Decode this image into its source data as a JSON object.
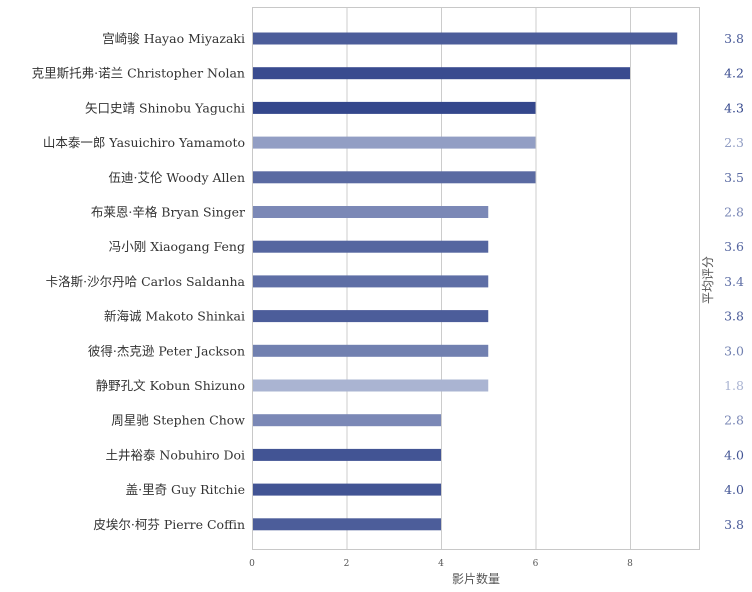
{
  "chart_data": {
    "type": "bar",
    "orientation": "horizontal",
    "title": "",
    "xlabel": "影片数量",
    "ylabel_right": "平均评分",
    "xlim": [
      0,
      9.5
    ],
    "xticks": [
      0,
      2,
      4,
      6,
      8
    ],
    "grid": true,
    "categories": [
      "宫崎骏 Hayao Miyazaki",
      "克里斯托弗·诺兰 Christopher Nolan",
      "矢口史靖 Shinobu Yaguchi",
      "山本泰一郎 Yasuichiro Yamamoto",
      "伍迪·艾伦 Woody Allen",
      "布莱恩·辛格 Bryan Singer",
      "冯小刚 Xiaogang Feng",
      "卡洛斯·沙尔丹哈 Carlos Saldanha",
      "新海诚 Makoto Shinkai",
      "彼得·杰克逊 Peter Jackson",
      "静野孔文 Kobun Shizuno",
      "周星驰 Stephen Chow",
      "土井裕泰 Nobuhiro Doi",
      "盖·里奇 Guy Ritchie",
      "皮埃尔·柯芬 Pierre Coffin"
    ],
    "values": [
      9,
      8,
      6,
      6,
      6,
      5,
      5,
      5,
      5,
      5,
      5,
      4,
      4,
      4,
      4
    ],
    "ratings": [
      "3.8",
      "4.2",
      "4.3",
      "2.3",
      "3.5",
      "2.8",
      "3.6",
      "3.4",
      "3.8",
      "3.0",
      "1.8",
      "2.8",
      "4.0",
      "4.0",
      "3.8"
    ],
    "colors": {
      "rating_dark": "#34478c",
      "rating_light": "#aab4d2",
      "grid": "#cccccc",
      "frame": "#c8c8c8"
    }
  }
}
